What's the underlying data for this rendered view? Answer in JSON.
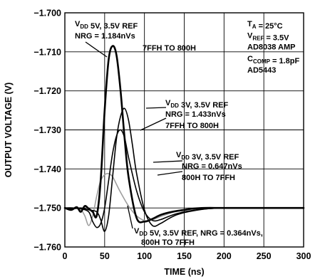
{
  "chart_data": {
    "type": "line",
    "xlabel": "TIME (ns)",
    "ylabel": "OUTPUT VOLTAGE (V)",
    "xlim": [
      0,
      300
    ],
    "ylim": [
      -1.76,
      -1.7
    ],
    "xticks": [
      "0",
      "50",
      "100",
      "150",
      "200",
      "250",
      "300"
    ],
    "yticks": [
      "−1.700",
      "−1.710",
      "−1.720",
      "−1.730",
      "−1.740",
      "−1.750",
      "−1.760"
    ],
    "grid": true,
    "conditions": [
      "T<tspan class='sub'>A</tspan> = 25°C"
    ],
    "conditions_text": {
      "ta": "TA = 25°C",
      "vref": "VREF = 3.5V",
      "amp": "AD8038 AMP",
      "ccomp": "CCOMP = 1.8pF",
      "part": "AD5443"
    },
    "annotations": [
      {
        "lines": [
          "VDD 5V, 3.5V REF",
          "NRG = 1.184nVs",
          "7FFH TO 800H"
        ]
      },
      {
        "lines": [
          "VDD 3V, 3.5V REF",
          "NRG = 1.433nVs",
          "7FFH TO 800H"
        ]
      },
      {
        "lines": [
          "VDD 3V, 3.5V REF",
          "NRG = 0.647nVs",
          "800H TO 7FFH"
        ]
      },
      {
        "lines": [
          "VDD 5V, 3.5V REF, NRG = 0.364nVs,",
          "800H TO 7FFH"
        ]
      }
    ],
    "series": [
      {
        "color": "#000000",
        "x": [
          0,
          8,
          15,
          20,
          25,
          30,
          35,
          40,
          45,
          50,
          55,
          60,
          65,
          70,
          75,
          80,
          90,
          100,
          110,
          120,
          130,
          140,
          150,
          160,
          175,
          200,
          250,
          300
        ],
        "y": [
          -1.75,
          -1.7505,
          -1.7498,
          -1.751,
          -1.7495,
          -1.7502,
          -1.751,
          -1.752,
          -1.743,
          -1.725,
          -1.712,
          -1.7085,
          -1.711,
          -1.72,
          -1.732,
          -1.742,
          -1.7525,
          -1.7535,
          -1.7528,
          -1.7518,
          -1.7512,
          -1.7508,
          -1.7505,
          -1.7502,
          -1.75,
          -1.75,
          -1.75,
          -1.75
        ]
      },
      {
        "color": "#000000",
        "x": [
          0,
          10,
          20,
          30,
          40,
          45,
          50,
          55,
          60,
          65,
          70,
          75,
          80,
          85,
          90,
          100,
          110,
          120,
          130,
          140,
          150,
          165,
          180,
          200,
          250,
          300
        ],
        "y": [
          -1.75,
          -1.7502,
          -1.75,
          -1.7505,
          -1.751,
          -1.753,
          -1.756,
          -1.752,
          -1.742,
          -1.732,
          -1.7265,
          -1.7245,
          -1.7275,
          -1.734,
          -1.741,
          -1.7505,
          -1.7545,
          -1.754,
          -1.7528,
          -1.7518,
          -1.7512,
          -1.7506,
          -1.7502,
          -1.75,
          -1.75,
          -1.75
        ]
      },
      {
        "color": "#000000",
        "x": [
          0,
          10,
          20,
          30,
          35,
          40,
          45,
          50,
          55,
          60,
          65,
          70,
          75,
          80,
          90,
          100,
          110,
          120,
          130,
          140,
          150,
          165,
          180,
          200,
          250,
          300
        ],
        "y": [
          -1.75,
          -1.75,
          -1.7502,
          -1.751,
          -1.7535,
          -1.755,
          -1.754,
          -1.75,
          -1.743,
          -1.736,
          -1.7315,
          -1.73,
          -1.732,
          -1.737,
          -1.7455,
          -1.751,
          -1.7532,
          -1.753,
          -1.7522,
          -1.7515,
          -1.751,
          -1.7505,
          -1.7502,
          -1.75,
          -1.75,
          -1.75
        ]
      },
      {
        "color": "#9e9e9e",
        "x": [
          0,
          10,
          20,
          25,
          30,
          35,
          40,
          45,
          50,
          55,
          60,
          65,
          70,
          80,
          90,
          100,
          110,
          120,
          130,
          140,
          150,
          165,
          180,
          200,
          250,
          300
        ],
        "y": [
          -1.75,
          -1.75,
          -1.7505,
          -1.752,
          -1.7545,
          -1.752,
          -1.747,
          -1.743,
          -1.7415,
          -1.7412,
          -1.742,
          -1.744,
          -1.746,
          -1.7495,
          -1.752,
          -1.7532,
          -1.753,
          -1.7522,
          -1.7515,
          -1.7508,
          -1.7504,
          -1.7502,
          -1.75,
          -1.75,
          -1.75,
          -1.75
        ]
      }
    ]
  }
}
